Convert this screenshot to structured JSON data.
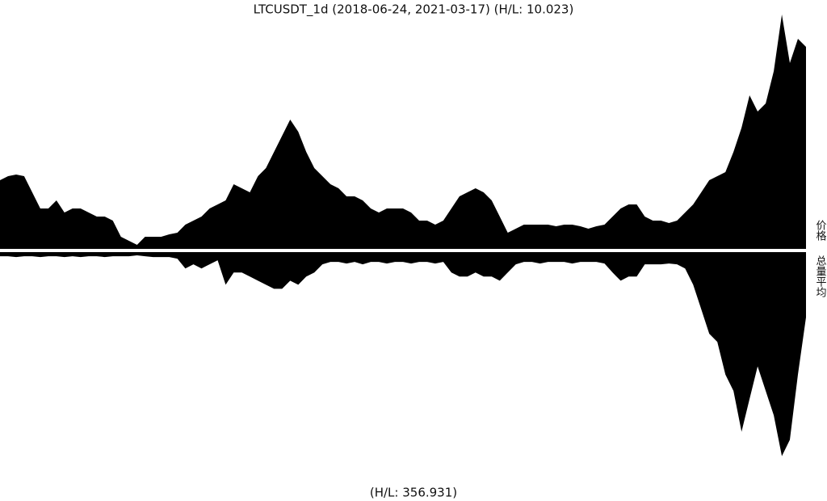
{
  "chart_data": [
    {
      "type": "area",
      "title": "LTCUSDT_1d (2018-06-24, 2021-03-17) (H/L: 10.023)",
      "ylabel": "价格",
      "color": "#000000",
      "inverted": false,
      "ylim": [
        0,
        300
      ],
      "values": [
        85,
        90,
        92,
        90,
        70,
        50,
        50,
        60,
        45,
        50,
        50,
        45,
        40,
        40,
        35,
        15,
        10,
        5,
        15,
        15,
        15,
        18,
        20,
        30,
        35,
        40,
        50,
        55,
        60,
        80,
        75,
        70,
        90,
        100,
        120,
        140,
        160,
        145,
        120,
        100,
        90,
        80,
        75,
        65,
        65,
        60,
        50,
        45,
        50,
        50,
        50,
        45,
        35,
        35,
        30,
        35,
        50,
        65,
        70,
        75,
        70,
        60,
        40,
        20,
        25,
        30,
        30,
        30,
        30,
        28,
        30,
        30,
        28,
        25,
        28,
        30,
        40,
        50,
        55,
        55,
        40,
        35,
        35,
        32,
        35,
        45,
        55,
        70,
        85,
        90,
        95,
        120,
        150,
        190,
        170,
        180,
        220,
        290,
        230,
        260,
        250
      ]
    },
    {
      "type": "area",
      "title": "(H/L: 356.931)",
      "ylabel": "总量平均",
      "color": "#000000",
      "inverted": true,
      "ylim": [
        0,
        300
      ],
      "values": [
        5,
        5,
        6,
        5,
        5,
        6,
        5,
        5,
        6,
        5,
        6,
        5,
        5,
        6,
        5,
        5,
        5,
        4,
        5,
        6,
        6,
        6,
        8,
        20,
        15,
        20,
        15,
        10,
        40,
        25,
        25,
        30,
        35,
        40,
        45,
        45,
        35,
        40,
        30,
        25,
        15,
        12,
        12,
        14,
        12,
        15,
        12,
        12,
        14,
        12,
        12,
        14,
        12,
        12,
        14,
        12,
        25,
        30,
        30,
        25,
        30,
        30,
        35,
        25,
        15,
        12,
        12,
        14,
        12,
        12,
        12,
        14,
        12,
        12,
        12,
        14,
        25,
        35,
        30,
        30,
        15,
        15,
        15,
        14,
        15,
        20,
        40,
        70,
        100,
        110,
        150,
        170,
        220,
        180,
        140,
        170,
        200,
        250,
        230,
        150,
        80
      ]
    }
  ]
}
